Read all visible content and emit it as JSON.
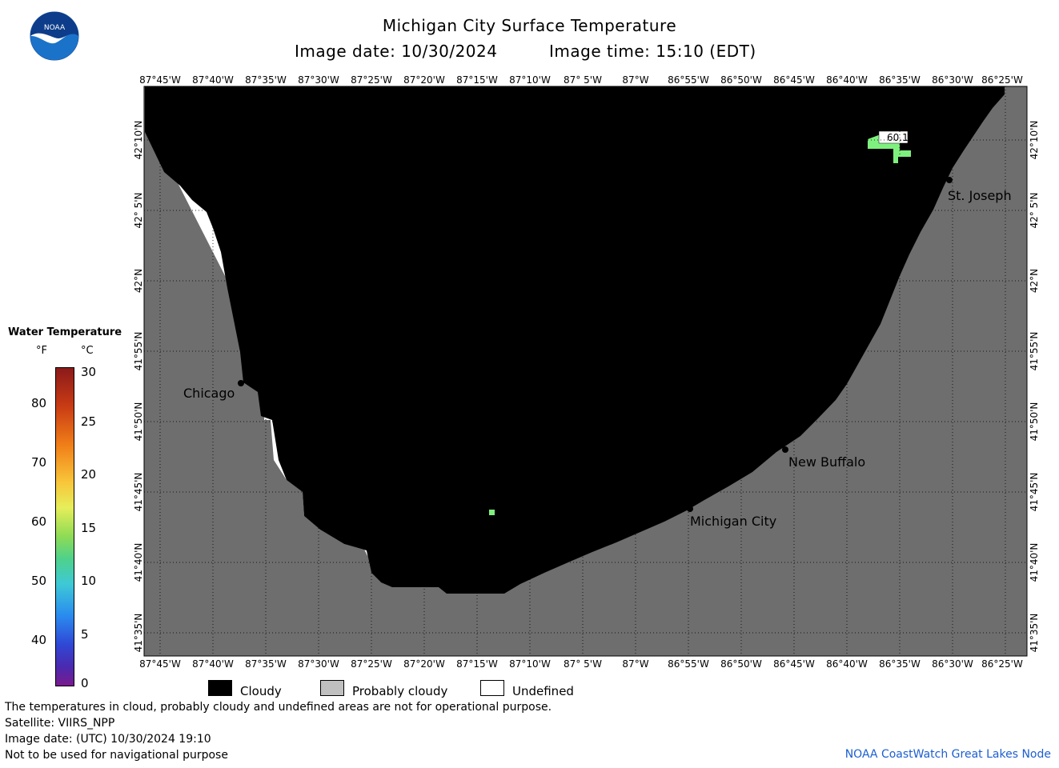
{
  "header": {
    "title": "Michigan City Surface Temperature",
    "image_date": "Image date: 10/30/2024",
    "image_time": "Image time: 15:10 (EDT)",
    "logo_text": "NOAA"
  },
  "axes": {
    "lon_labels": [
      "87°45'W",
      "87°40'W",
      "87°35'W",
      "87°30'W",
      "87°25'W",
      "87°20'W",
      "87°15'W",
      "87°10'W",
      "87° 5'W",
      "87°W",
      "86°55'W",
      "86°50'W",
      "86°45'W",
      "86°40'W",
      "86°35'W",
      "86°30'W",
      "86°25'W"
    ],
    "lat_labels": [
      "42°10'N",
      "42° 5'N",
      "42°N",
      "41°55'N",
      "41°50'N",
      "41°45'N",
      "41°40'N",
      "41°35'N"
    ]
  },
  "places": [
    {
      "name": "Chicago"
    },
    {
      "name": "St. Joseph"
    },
    {
      "name": "New Buffalo"
    },
    {
      "name": "Michigan City"
    }
  ],
  "observation": {
    "value": "60.1"
  },
  "legend": {
    "title": "Water Temperature",
    "unit_f": "°F",
    "unit_c": "°C",
    "f_ticks": [
      "80",
      "70",
      "60",
      "50",
      "40"
    ],
    "c_ticks": [
      "30",
      "25",
      "20",
      "15",
      "10",
      "5",
      "0"
    ],
    "colors": {
      "cloudy": "#000000",
      "probably_cloudy": "#c0c0c0",
      "undefined": "#ffffff",
      "land": "#6e6e6e",
      "observation": "#7ef07e"
    }
  },
  "key": {
    "cloudy": "Cloudy",
    "probably_cloudy": "Probably cloudy",
    "undefined": "Undefined"
  },
  "footer": {
    "line1": "The temperatures in cloud, probably cloudy and undefined areas are not for operational purpose.",
    "line2": "Satellite: VIIRS_NPP",
    "line3": "Image date: (UTC) 10/30/2024  19:10",
    "line4": "Not to be used for navigational purpose",
    "credit": "NOAA CoastWatch Great Lakes Node"
  }
}
